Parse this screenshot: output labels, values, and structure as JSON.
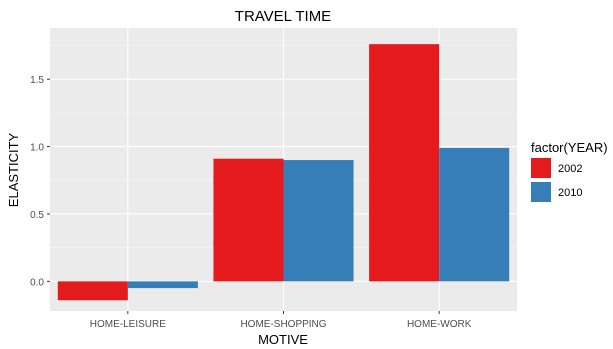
{
  "colors": {
    "panel": "#ebebeb",
    "grid_major": "#ffffff",
    "grid_minor": "#f5f5f5",
    "text_dark": "#000000",
    "text_axis": "#4d4d4d"
  },
  "chart_data": {
    "type": "bar",
    "title": "TRAVEL TIME",
    "xlabel": "MOTIVE",
    "ylabel": "ELASTICITY",
    "categories": [
      "HOME-LEISURE",
      "HOME-SHOPPING",
      "HOME-WORK"
    ],
    "series": [
      {
        "name": "2002",
        "color": "#e41a1c",
        "values": [
          -0.14,
          0.91,
          1.76
        ]
      },
      {
        "name": "2010",
        "color": "#377eb8",
        "values": [
          -0.05,
          0.9,
          0.99
        ]
      }
    ],
    "ylim": [
      -0.22,
      1.88
    ],
    "yticks": [
      0.0,
      0.5,
      1.0,
      1.5
    ],
    "ytick_labels": [
      "0.0",
      "0.5",
      "1.0",
      "1.5"
    ],
    "grid": true,
    "legend": {
      "title": "factor(YEAR)",
      "position": "right"
    }
  }
}
